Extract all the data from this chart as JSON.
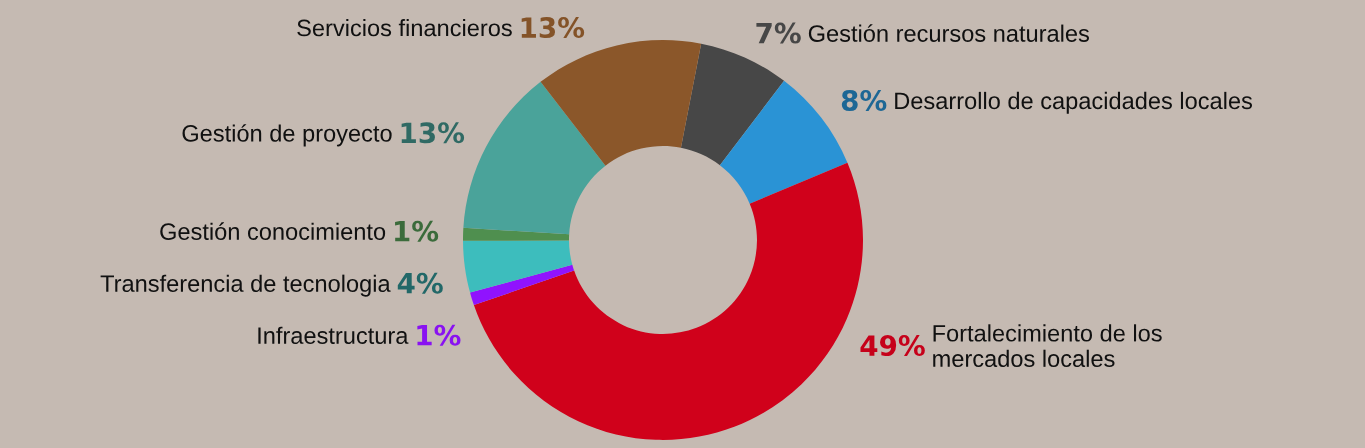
{
  "chart_data": {
    "type": "donut",
    "categories": [
      "Gestión recursos naturales",
      "Desarrollo de capacidades locales",
      "Fortalecimiento de los\nmercados locales",
      "Infraestructura",
      "Transferencia de tecnologia",
      "Gestión conocimiento",
      "Gestión de proyecto",
      "Servicios financieros"
    ],
    "values": [
      7,
      8,
      49,
      1,
      4,
      1,
      13,
      13
    ],
    "value_labels": [
      "7%",
      "8%",
      "49%",
      "1%",
      "4%",
      "1%",
      "13%",
      "13%"
    ],
    "colors": [
      "#474747",
      "#2a93d5",
      "#d0011b",
      "#9013fe",
      "#3dbdbd",
      "#4f8f4f",
      "#4aa39a",
      "#8b572a"
    ]
  }
}
